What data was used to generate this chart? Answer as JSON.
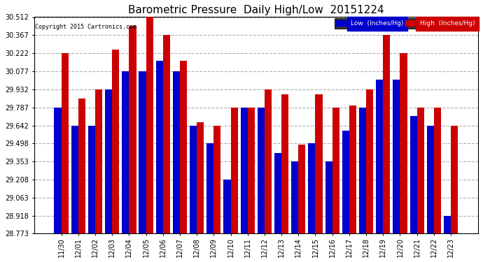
{
  "title": "Barometric Pressure  Daily High/Low  20151224",
  "copyright": "Copyright 2015 Cartronics.com",
  "dates": [
    "11/30",
    "12/01",
    "12/02",
    "12/03",
    "12/04",
    "12/05",
    "12/06",
    "12/07",
    "12/08",
    "12/09",
    "12/10",
    "12/11",
    "12/12",
    "12/13",
    "12/14",
    "12/15",
    "12/16",
    "12/17",
    "12/18",
    "12/19",
    "12/20",
    "12/21",
    "12/22",
    "12/23"
  ],
  "low": [
    29.787,
    29.642,
    29.642,
    29.932,
    30.077,
    30.077,
    30.16,
    30.077,
    29.642,
    29.498,
    29.208,
    29.787,
    29.787,
    29.42,
    29.353,
    29.498,
    29.353,
    29.6,
    29.787,
    30.007,
    30.007,
    29.72,
    29.642,
    28.918
  ],
  "high": [
    30.222,
    29.86,
    29.932,
    30.25,
    30.44,
    30.512,
    30.367,
    30.16,
    29.67,
    29.642,
    29.787,
    29.787,
    29.932,
    29.89,
    29.49,
    29.89,
    29.787,
    29.8,
    29.932,
    30.367,
    30.222,
    29.787,
    29.787,
    29.642
  ],
  "ylim_min": 28.773,
  "ylim_max": 30.512,
  "yticks": [
    28.773,
    28.918,
    29.063,
    29.208,
    29.353,
    29.498,
    29.642,
    29.787,
    29.932,
    30.077,
    30.222,
    30.367,
    30.512
  ],
  "low_color": "#0000cc",
  "high_color": "#cc0000",
  "bg_color": "#ffffff",
  "grid_color": "#b0b0b0",
  "title_fontsize": 11,
  "legend_low_label": "Low  (Inches/Hg)",
  "legend_high_label": "High  (Inches/Hg)"
}
